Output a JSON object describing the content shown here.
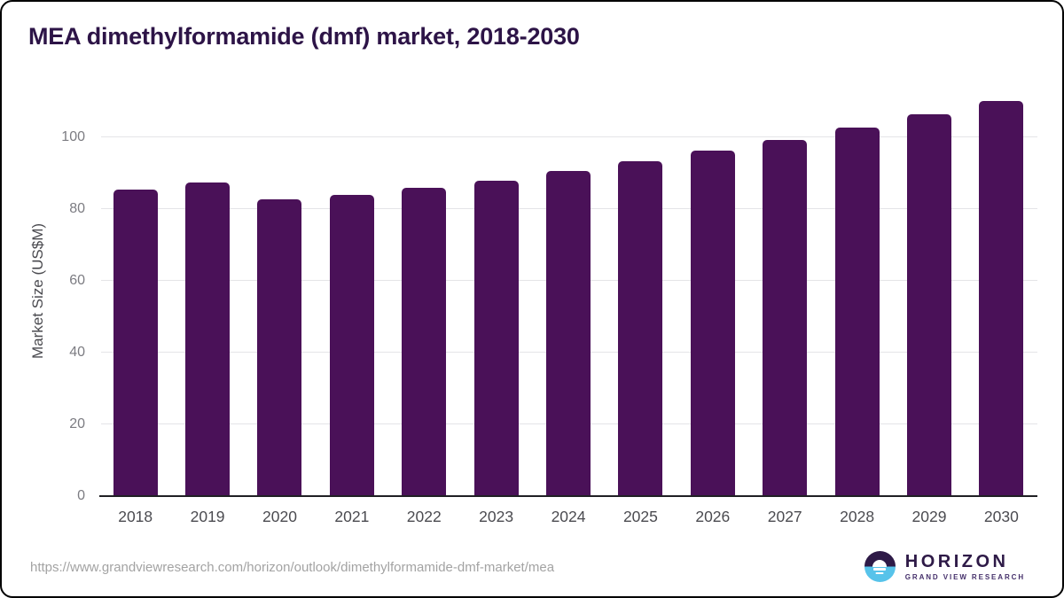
{
  "header": {
    "title": "MEA dimethylformamide (dmf) market, 2018-2030"
  },
  "chart_data": {
    "type": "bar",
    "title": "MEA dimethylformamide (dmf) market, 2018-2030",
    "xlabel": "",
    "ylabel": "Market Size (US$M)",
    "categories": [
      "2018",
      "2019",
      "2020",
      "2021",
      "2022",
      "2023",
      "2024",
      "2025",
      "2026",
      "2027",
      "2028",
      "2029",
      "2030"
    ],
    "values": [
      85.4,
      87.3,
      82.6,
      84.0,
      85.8,
      87.9,
      90.5,
      93.2,
      96.2,
      99.2,
      102.7,
      106.3,
      110.2
    ],
    "yticks": [
      0,
      20,
      40,
      60,
      80,
      100
    ],
    "ylim": [
      0,
      114.3
    ],
    "grid": "horizontal",
    "legend": "none",
    "bar_color": "#4a1158"
  },
  "footer": {
    "source_url": "https://www.grandviewresearch.com/horizon/outlook/dimethylformamide-dmf-market/mea",
    "logo": {
      "title": "HORIZON",
      "subtitle": "GRAND VIEW RESEARCH",
      "icon_top_color": "#2e1a47",
      "icon_bottom_color": "#57c3ea"
    }
  },
  "colors": {
    "title_text": "#2d1447",
    "bar_fill": "#4a1158",
    "axis_line": "#202024",
    "gridline": "#e4e4e7",
    "tick_label": "#7c7c82",
    "x_label": "#4b4b50"
  }
}
